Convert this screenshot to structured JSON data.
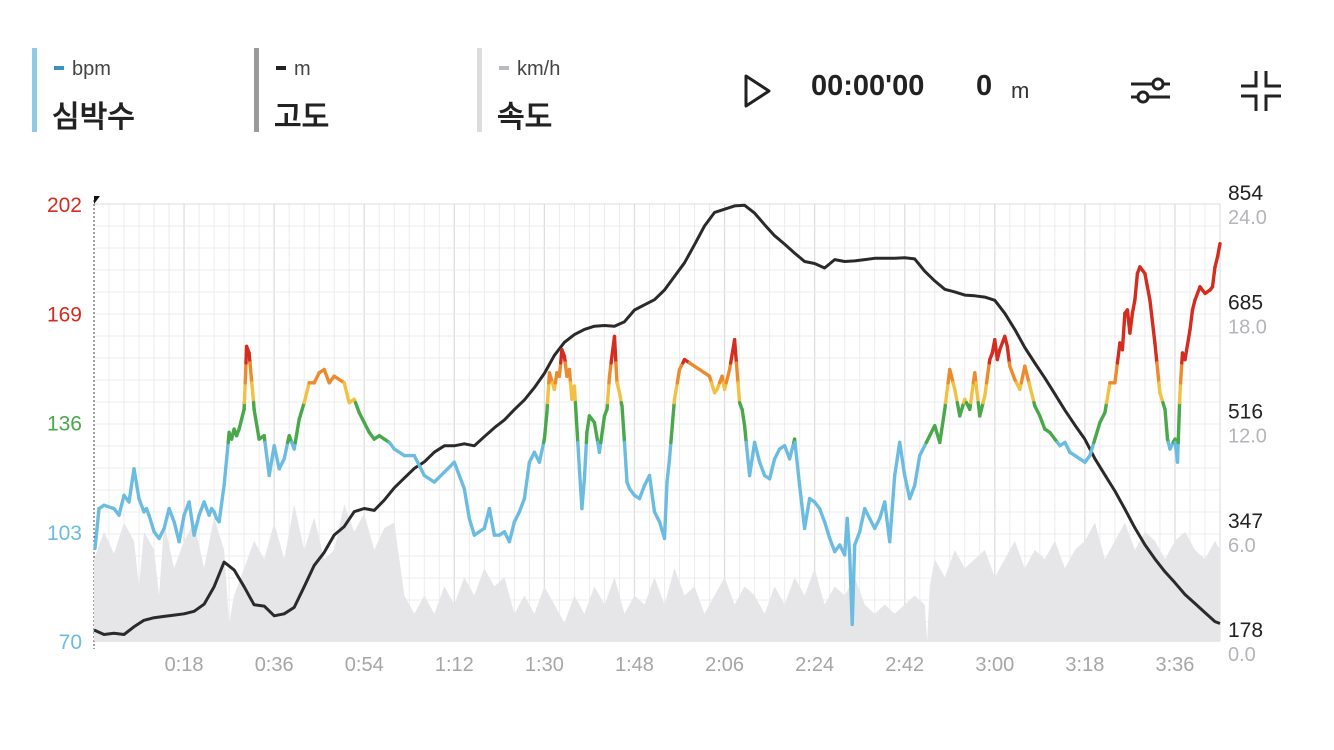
{
  "legend": [
    {
      "unit": "bpm",
      "name": "심박수",
      "bar_color": "#8ecae6",
      "dash_color": "#3d8fc4"
    },
    {
      "unit": "m",
      "name": "고도",
      "bar_color": "#9a9a9a",
      "dash_color": "#222222"
    },
    {
      "unit": "km/h",
      "name": "속도",
      "bar_color": "#dcdcdc",
      "dash_color": "#b9b9c3"
    }
  ],
  "playback": {
    "time": "00:00'00",
    "distance_value": "0",
    "distance_unit": "m"
  },
  "icons": {
    "play": "play-icon",
    "settings": "sliders-icon",
    "collapse": "collapse-icon"
  },
  "colors": {
    "hr_zone1": "#6bbce0",
    "hr_zone2": "#48a84a",
    "hr_zone3": "#f2c143",
    "hr_zone4": "#ec8a2e",
    "hr_zone5": "#d42d1f",
    "altitude": "#2a2a2a",
    "speed_fill": "#e6e6e9",
    "grid": "#ececec"
  },
  "chart_data": {
    "type": "line",
    "x_unit": "minutes",
    "xlim": [
      0,
      225
    ],
    "x_tick_labels": [
      "0:18",
      "0:36",
      "0:54",
      "1:12",
      "1:30",
      "1:48",
      "2:06",
      "2:24",
      "2:42",
      "3:00",
      "3:18",
      "3:36"
    ],
    "x_ticks": [
      18,
      36,
      54,
      72,
      90,
      108,
      126,
      144,
      162,
      180,
      198,
      216
    ],
    "left_axis": {
      "ylim": [
        70,
        202
      ],
      "ticks": [
        70,
        103,
        136,
        169,
        202
      ],
      "tick_colors": [
        "#6bbce0",
        "#6bbce0",
        "#48a84a",
        "#d42d1f",
        "#d42d1f"
      ]
    },
    "right_axis_altitude": {
      "ylim": [
        178,
        854
      ],
      "ticks": [
        178,
        347,
        516,
        685,
        854
      ]
    },
    "right_axis_speed": {
      "ylim": [
        0,
        24
      ],
      "ticks": [
        "0.0",
        "6.0",
        "12.0",
        "18.0",
        "24.0"
      ]
    },
    "hr_zone_thresholds": [
      130,
      142,
      148,
      154
    ],
    "series": [
      {
        "name": "심박수",
        "axis": "left",
        "x": [
          0.2,
          1.0,
          2.0,
          4.0,
          5.0,
          6.0,
          7.0,
          8.0,
          9.0,
          10.0,
          10.5,
          11.0,
          12.0,
          12.5,
          13.0,
          14.0,
          15.0,
          16.0,
          17.0,
          18.0,
          19.0,
          19.5,
          20.0,
          21.0,
          22.0,
          23.0,
          23.5,
          24.0,
          24.5,
          25.0,
          26.0,
          27.0,
          27.5,
          28.0,
          28.5,
          29.0,
          29.5,
          30.0,
          30.5,
          31.0,
          32.0,
          33.0,
          34.0,
          35.0,
          36.0,
          37.0,
          38.0,
          39.0,
          40.0,
          41.0,
          42.0,
          43.0,
          44.0,
          45.0,
          46.0,
          47.0,
          48.0,
          49.0,
          50.0,
          51.0,
          52.0,
          53.0,
          54.0,
          55.0,
          56.0,
          57.0,
          58.0,
          59.0,
          60.0,
          62.0,
          64.0,
          66.0,
          68.0,
          70.0,
          72.0,
          73.0,
          74.0,
          75.0,
          76.0,
          78.0,
          79.0,
          80.0,
          81.0,
          82.0,
          83.0,
          84.0,
          85.0,
          86.0,
          87.0,
          88.0,
          89.0,
          90.0,
          90.5,
          91.0,
          92.0,
          92.5,
          93.0,
          93.5,
          94.0,
          94.5,
          95.0,
          95.5,
          96.0,
          97.0,
          97.5,
          98.0,
          98.5,
          99.0,
          100.0,
          101.0,
          102.0,
          102.5,
          103.0,
          104.0,
          104.5,
          105.0,
          105.5,
          106.0,
          106.5,
          107.0,
          108.0,
          109.0,
          110.0,
          111.0,
          112.0,
          113.0,
          114.0,
          114.5,
          115.0,
          116.0,
          117.0,
          118.0,
          119.0,
          120.0,
          121.0,
          122.0,
          123.0,
          124.0,
          124.5,
          125.0,
          125.5,
          126.0,
          127.0,
          128.0,
          129.0,
          129.5,
          130.0,
          131.0,
          132.0,
          133.0,
          134.0,
          135.0,
          136.0,
          137.0,
          138.0,
          139.0,
          140.0,
          141.0,
          142.0,
          143.0,
          144.0,
          145.0,
          146.0,
          147.0,
          148.0,
          149.0,
          150.0,
          150.5,
          151.0,
          151.5,
          152.0,
          153.0,
          154.0,
          155.0,
          156.0,
          157.0,
          158.0,
          159.0,
          160.0,
          161.0,
          162.0,
          163.0,
          164.0,
          165.0,
          166.0,
          167.0,
          168.0,
          169.0,
          170.0,
          171.0,
          172.0,
          173.0,
          174.0,
          175.0,
          176.0,
          177.0,
          178.0,
          179.0,
          179.5,
          180.0,
          180.5,
          181.0,
          182.0,
          182.5,
          183.0,
          184.0,
          185.0,
          186.0,
          187.0,
          188.0,
          189.0,
          190.0,
          191.0,
          192.0,
          193.0,
          194.0,
          195.0,
          196.0,
          197.0,
          198.0,
          199.0,
          200.0,
          201.0,
          202.0,
          203.0,
          204.0,
          205.0,
          205.5,
          206.0,
          206.5,
          207.0,
          207.5,
          208.0,
          208.5,
          209.0,
          210.0,
          211.0,
          212.0,
          213.0,
          214.0,
          214.5,
          215.0,
          216.0,
          216.5,
          217.0,
          217.5,
          218.0,
          219.0,
          219.5,
          220.0,
          221.0,
          222.0,
          223.0,
          223.5,
          224.0,
          224.5,
          225.0
        ],
        "y": [
          98,
          110,
          111,
          110,
          108,
          114,
          112,
          122,
          113,
          109,
          110,
          108,
          103,
          102,
          101,
          104,
          110,
          106,
          100,
          108,
          112,
          107,
          102,
          108,
          112,
          108,
          110,
          109,
          107,
          106,
          117,
          133,
          131,
          134,
          132,
          134,
          137,
          140,
          159,
          157,
          140,
          131,
          132,
          120,
          129,
          122,
          125,
          132,
          128,
          137,
          142,
          148,
          148,
          151,
          152,
          148,
          150,
          149,
          148,
          142,
          143,
          139,
          136,
          133,
          131,
          132,
          131,
          130,
          128,
          126,
          126,
          120,
          118,
          121,
          124,
          120,
          116,
          107,
          102,
          104,
          110,
          102,
          102,
          103,
          100,
          106,
          109,
          113,
          124,
          127,
          124,
          131,
          139,
          151,
          146,
          151,
          150,
          158,
          156,
          150,
          152,
          143,
          147,
          122,
          110,
          119,
          133,
          138,
          136,
          127,
          138,
          140,
          150,
          162,
          148,
          145,
          141,
          130,
          118,
          116,
          114,
          113,
          117,
          120,
          109,
          106,
          101,
          118,
          125,
          143,
          152,
          155,
          154,
          153,
          152,
          151,
          150,
          145,
          146,
          148,
          150,
          146,
          152,
          161,
          142,
          140,
          135,
          120,
          130,
          124,
          120,
          119,
          125,
          128,
          129,
          125,
          131,
          117,
          104,
          113,
          112,
          110,
          106,
          101,
          97,
          99,
          96,
          107,
          96,
          75,
          99,
          103,
          110,
          107,
          104,
          107,
          112,
          100,
          120,
          130,
          120,
          113,
          117,
          126,
          129,
          132,
          135,
          130,
          140,
          152,
          146,
          138,
          143,
          140,
          151,
          138,
          144,
          155,
          157,
          161,
          155,
          158,
          162,
          159,
          153,
          149,
          146,
          153,
          147,
          141,
          138,
          134,
          133,
          131,
          129,
          130,
          127,
          126,
          125,
          124,
          126,
          131,
          136,
          139,
          148,
          148,
          160,
          158,
          169,
          170,
          163,
          169,
          173,
          181,
          183,
          181,
          173,
          160,
          145,
          140,
          131,
          128,
          131,
          124,
          145,
          157,
          155,
          164,
          170,
          173,
          177,
          175,
          176,
          177,
          183,
          186,
          190
        ]
      },
      {
        "name": "고도",
        "axis": "right_altitude",
        "x": [
          0,
          2,
          4,
          6,
          8,
          10,
          12,
          14,
          16,
          18,
          20,
          22,
          24,
          26,
          28,
          30,
          32,
          34,
          36,
          38,
          40,
          42,
          44,
          46,
          48,
          50,
          52,
          54,
          56,
          58,
          60,
          62,
          64,
          66,
          68,
          70,
          72,
          74,
          76,
          78,
          80,
          82,
          84,
          86,
          88,
          90,
          92,
          94,
          96,
          98,
          100,
          102,
          104,
          106,
          108,
          110,
          112,
          114,
          116,
          118,
          120,
          122,
          124,
          126,
          128,
          130,
          132,
          134,
          136,
          138,
          140,
          142,
          144,
          146,
          148,
          150,
          152,
          154,
          156,
          158,
          160,
          162,
          164,
          166,
          168,
          170,
          172,
          174,
          176,
          178,
          180,
          182,
          184,
          186,
          188,
          190,
          192,
          194,
          196,
          198,
          200,
          202,
          204,
          206,
          208,
          210,
          212,
          214,
          216,
          218,
          220,
          222,
          224,
          225
        ],
        "y": [
          195,
          188,
          190,
          188,
          200,
          210,
          214,
          216,
          218,
          220,
          224,
          235,
          262,
          300,
          288,
          262,
          234,
          232,
          217,
          220,
          230,
          262,
          295,
          315,
          342,
          355,
          378,
          383,
          380,
          396,
          415,
          430,
          445,
          455,
          470,
          480,
          480,
          483,
          480,
          494,
          508,
          520,
          536,
          551,
          570,
          592,
          620,
          640,
          652,
          660,
          665,
          666,
          665,
          672,
          690,
          698,
          706,
          721,
          742,
          763,
          791,
          820,
          841,
          846,
          851,
          852,
          840,
          822,
          805,
          792,
          778,
          765,
          762,
          755,
          768,
          765,
          766,
          768,
          770,
          770,
          770,
          771,
          769,
          750,
          735,
          722,
          718,
          713,
          712,
          710,
          705,
          685,
          660,
          632,
          608,
          585,
          560,
          535,
          512,
          490,
          460,
          435,
          410,
          382,
          353,
          327,
          305,
          285,
          268,
          250,
          236,
          222,
          208,
          205
        ]
      },
      {
        "name": "속도",
        "axis": "right_speed",
        "x": [
          0,
          2,
          4,
          6,
          8,
          9,
          10,
          12,
          13,
          14,
          16,
          18,
          20,
          22,
          24,
          26,
          27,
          28,
          30,
          32,
          34,
          36,
          38,
          40,
          42,
          44,
          46,
          48,
          50,
          52,
          54,
          56,
          58,
          60,
          62,
          64,
          66,
          68,
          70,
          72,
          74,
          76,
          78,
          80,
          82,
          84,
          86,
          88,
          90,
          92,
          94,
          96,
          98,
          100,
          102,
          104,
          106,
          108,
          110,
          112,
          114,
          116,
          118,
          120,
          122,
          124,
          126,
          128,
          130,
          132,
          134,
          136,
          138,
          140,
          142,
          144,
          146,
          148,
          150,
          152,
          154,
          156,
          158,
          160,
          162,
          164,
          166,
          166.5,
          167,
          168,
          170,
          172,
          174,
          176,
          178,
          180,
          182,
          184,
          186,
          188,
          190,
          192,
          194,
          196,
          198,
          200,
          202,
          204,
          206,
          208,
          210,
          212,
          214,
          216,
          218,
          220,
          222,
          224,
          225
        ],
        "y": [
          4.5,
          6.0,
          4.8,
          6.5,
          5.5,
          3.0,
          6.0,
          5.0,
          2.5,
          6.5,
          4.0,
          5.5,
          6.5,
          4.0,
          6.8,
          5.0,
          1.0,
          2.5,
          4.0,
          5.5,
          4.5,
          6.5,
          4.5,
          7.5,
          5.0,
          6.8,
          4.5,
          5.0,
          7.5,
          6.0,
          7.0,
          5.0,
          6.2,
          6.5,
          2.5,
          1.5,
          2.5,
          1.5,
          3.0,
          2.0,
          3.5,
          2.5,
          4.0,
          3.0,
          3.5,
          1.5,
          2.5,
          1.5,
          3.0,
          2.0,
          1.0,
          2.5,
          1.5,
          3.0,
          2.0,
          3.5,
          1.5,
          2.5,
          2.0,
          3.5,
          2.0,
          4.0,
          2.5,
          3.0,
          1.5,
          2.5,
          3.5,
          2.0,
          3.0,
          2.5,
          1.5,
          3.0,
          2.0,
          3.5,
          2.5,
          4.0,
          2.0,
          3.0,
          2.5,
          3.5,
          2.0,
          1.5,
          2.0,
          1.5,
          2.0,
          2.5,
          2.0,
          0.0,
          3.0,
          4.5,
          3.5,
          5.0,
          4.0,
          4.5,
          5.0,
          3.5,
          4.5,
          5.5,
          4.0,
          5.0,
          4.5,
          5.5,
          4.0,
          5.0,
          5.5,
          6.5,
          4.5,
          5.5,
          6.5,
          5.0,
          6.0,
          5.5,
          4.5,
          5.5,
          6.0,
          5.0,
          4.5,
          5.5,
          5.0
        ]
      }
    ]
  }
}
